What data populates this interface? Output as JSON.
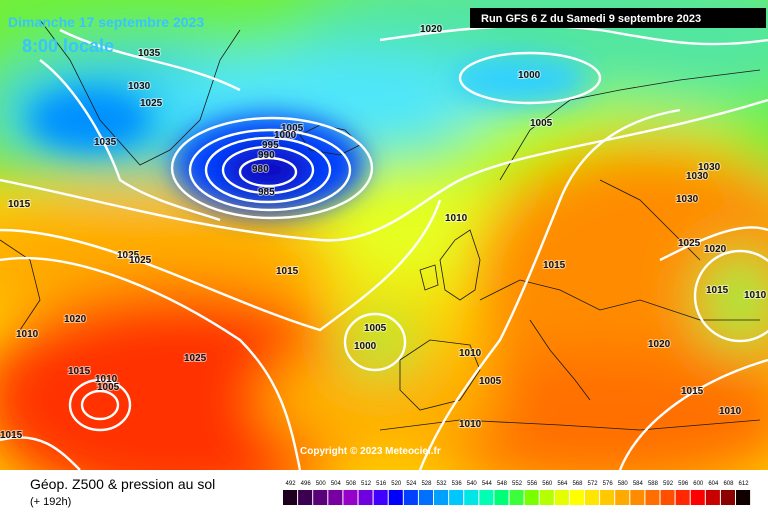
{
  "header": {
    "date": "Dimanche 17 septembre 2023",
    "time": "8:00 locale",
    "run": "Run GFS 6 Z du Samedi 9 septembre 2023",
    "copyright": "Copyright © 2023 Meteociel.fr"
  },
  "footer": {
    "title": "Géop. Z500 & pression au sol",
    "lead": "(+ 192h)"
  },
  "isobar_labels": [
    "1020",
    "1035",
    "1030",
    "1025",
    "1000",
    "1005",
    "1035",
    "1005",
    "1000",
    "995",
    "990",
    "980",
    "985",
    "1030",
    "1030",
    "1030",
    "1015",
    "1010",
    "1025",
    "1020",
    "1025",
    "1025",
    "1015",
    "1015",
    "1015",
    "1010",
    "1020",
    "1010",
    "1005",
    "1000",
    "1020",
    "1010",
    "1015",
    "1025",
    "1010",
    "1005",
    "1005",
    "1015",
    "1010",
    "1010",
    "1015"
  ],
  "scale": [
    {
      "value": 492,
      "color": "#1e001e"
    },
    {
      "value": 496,
      "color": "#3c0050"
    },
    {
      "value": 500,
      "color": "#5a0078"
    },
    {
      "value": 504,
      "color": "#7800a0"
    },
    {
      "value": 508,
      "color": "#9600c8"
    },
    {
      "value": 512,
      "color": "#7000e0"
    },
    {
      "value": 516,
      "color": "#4000ff"
    },
    {
      "value": 520,
      "color": "#0000ff"
    },
    {
      "value": 524,
      "color": "#0040ff"
    },
    {
      "value": 528,
      "color": "#0070ff"
    },
    {
      "value": 532,
      "color": "#00a0ff"
    },
    {
      "value": 536,
      "color": "#00c8ff"
    },
    {
      "value": 540,
      "color": "#00e6e6"
    },
    {
      "value": 544,
      "color": "#00ffb4"
    },
    {
      "value": 548,
      "color": "#00ff78"
    },
    {
      "value": 552,
      "color": "#3cff3c"
    },
    {
      "value": 556,
      "color": "#78ff00"
    },
    {
      "value": 560,
      "color": "#b4ff00"
    },
    {
      "value": 564,
      "color": "#e6ff00"
    },
    {
      "value": 568,
      "color": "#ffff00"
    },
    {
      "value": 572,
      "color": "#ffe600"
    },
    {
      "value": 576,
      "color": "#ffc800"
    },
    {
      "value": 580,
      "color": "#ffaa00"
    },
    {
      "value": 584,
      "color": "#ff8c00"
    },
    {
      "value": 588,
      "color": "#ff6e00"
    },
    {
      "value": 592,
      "color": "#ff5000"
    },
    {
      "value": 596,
      "color": "#ff2800"
    },
    {
      "value": 600,
      "color": "#ff0000"
    },
    {
      "value": 604,
      "color": "#c80000"
    },
    {
      "value": 608,
      "color": "#8c0000"
    },
    {
      "value": 612,
      "color": "#100000"
    }
  ]
}
